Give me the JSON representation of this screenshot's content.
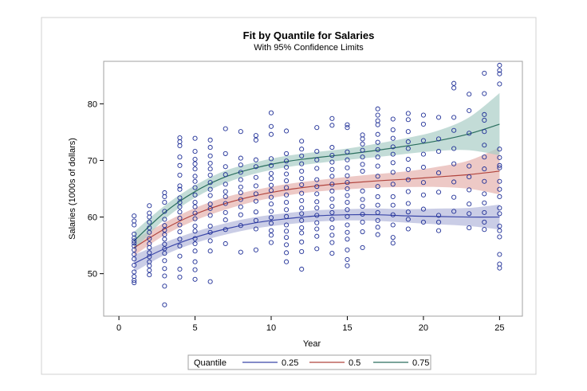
{
  "chart_data": {
    "type": "scatter",
    "title": "Fit by Quantile for Salaries",
    "subtitle": "With 95% Confidence Limits",
    "xlabel": "Year",
    "ylabel": "Salaries (1000s of dollars)",
    "xlim": [
      -1,
      26.5
    ],
    "ylim": [
      42.5,
      87.5
    ],
    "xticks": [
      0,
      5,
      10,
      15,
      20,
      25
    ],
    "yticks": [
      50,
      60,
      70,
      80
    ],
    "grid": false,
    "legend": {
      "title": "Quantile",
      "placement": "bottom"
    },
    "point_color": "#1f2f97",
    "series": [
      {
        "name": "0.25",
        "color": "#3a46a8",
        "band_color": "#b3b8dc",
        "x": [
          1,
          3,
          5,
          7,
          9,
          11,
          13,
          15,
          17,
          19,
          21,
          23,
          25
        ],
        "y": [
          51.8,
          54.4,
          56.4,
          57.9,
          59.0,
          59.7,
          60.2,
          60.4,
          60.4,
          60.2,
          60.1,
          60.0,
          60.0
        ],
        "lower": [
          50.3,
          53.3,
          55.4,
          56.9,
          58.0,
          58.7,
          59.2,
          59.4,
          59.3,
          59.0,
          58.7,
          58.4,
          57.8
        ],
        "upper": [
          53.3,
          55.5,
          57.4,
          58.9,
          60.0,
          60.7,
          61.2,
          61.4,
          61.5,
          61.4,
          61.5,
          61.6,
          62.2
        ]
      },
      {
        "name": "0.5",
        "color": "#b1453e",
        "band_color": "#e6b2ae",
        "x": [
          1,
          3,
          5,
          7,
          9,
          11,
          13,
          15,
          17,
          19,
          21,
          23,
          25
        ],
        "y": [
          54.6,
          57.9,
          60.5,
          62.4,
          63.8,
          64.8,
          65.5,
          66.0,
          66.4,
          66.7,
          67.1,
          67.5,
          68.1
        ],
        "lower": [
          53.2,
          56.8,
          59.4,
          61.3,
          62.8,
          63.8,
          64.5,
          64.9,
          65.2,
          65.3,
          65.3,
          65.0,
          64.0
        ],
        "upper": [
          56.0,
          59.0,
          61.6,
          63.5,
          64.8,
          65.8,
          66.5,
          67.1,
          67.6,
          68.1,
          68.9,
          70.0,
          72.3
        ]
      },
      {
        "name": "0.75",
        "color": "#2a6e5e",
        "band_color": "#a9cdc6",
        "x": [
          1,
          3,
          5,
          7,
          9,
          11,
          13,
          15,
          17,
          19,
          21,
          23,
          25
        ],
        "y": [
          55.8,
          60.8,
          64.5,
          67.1,
          68.7,
          69.8,
          70.5,
          71.1,
          71.8,
          72.6,
          73.5,
          74.7,
          76.4
        ],
        "lower": [
          54.2,
          59.6,
          63.4,
          66.0,
          67.7,
          68.8,
          69.5,
          70.1,
          70.6,
          71.2,
          71.7,
          71.8,
          70.9
        ],
        "upper": [
          57.4,
          62.0,
          65.6,
          68.2,
          69.7,
          70.8,
          71.5,
          72.1,
          73.0,
          74.0,
          75.3,
          77.6,
          81.9
        ]
      }
    ],
    "points": [
      [
        1,
        48.4
      ],
      [
        1,
        48.8
      ],
      [
        1,
        49.5
      ],
      [
        1,
        50.3
      ],
      [
        1,
        51.5
      ],
      [
        1,
        52.6
      ],
      [
        1,
        53.4
      ],
      [
        1,
        54.2
      ],
      [
        1,
        54.9
      ],
      [
        1,
        55.4
      ],
      [
        1,
        55.8
      ],
      [
        1,
        56.3
      ],
      [
        1,
        57.0
      ],
      [
        1,
        58.6
      ],
      [
        1,
        59.3
      ],
      [
        1,
        60.2
      ],
      [
        2,
        49.8
      ],
      [
        2,
        50.6
      ],
      [
        2,
        51.4
      ],
      [
        2,
        52.1
      ],
      [
        2,
        53.0
      ],
      [
        2,
        53.7
      ],
      [
        2,
        54.6
      ],
      [
        2,
        55.3
      ],
      [
        2,
        56.2
      ],
      [
        2,
        57.3
      ],
      [
        2,
        58.1
      ],
      [
        2,
        59.1
      ],
      [
        2,
        60.0
      ],
      [
        2,
        60.7
      ],
      [
        2,
        62.0
      ],
      [
        3,
        44.5
      ],
      [
        3,
        47.8
      ],
      [
        3,
        49.6
      ],
      [
        3,
        50.9
      ],
      [
        3,
        52.3
      ],
      [
        3,
        53.6
      ],
      [
        3,
        54.4
      ],
      [
        3,
        55.2
      ],
      [
        3,
        56.1
      ],
      [
        3,
        56.9
      ],
      [
        3,
        57.7
      ],
      [
        3,
        58.5
      ],
      [
        3,
        59.6
      ],
      [
        3,
        61.0
      ],
      [
        3,
        62.6
      ],
      [
        3,
        63.6
      ],
      [
        3,
        64.3
      ],
      [
        4,
        49.4
      ],
      [
        4,
        50.8
      ],
      [
        4,
        53.1
      ],
      [
        4,
        54.9
      ],
      [
        4,
        56.1
      ],
      [
        4,
        57.4
      ],
      [
        4,
        58.6
      ],
      [
        4,
        59.8
      ],
      [
        4,
        60.9
      ],
      [
        4,
        61.8
      ],
      [
        4,
        62.6
      ],
      [
        4,
        63.4
      ],
      [
        4,
        64.9
      ],
      [
        4,
        65.5
      ],
      [
        4,
        67.4
      ],
      [
        4,
        69.1
      ],
      [
        4,
        70.6
      ],
      [
        4,
        72.6
      ],
      [
        4,
        73.3
      ],
      [
        4,
        74.0
      ],
      [
        5,
        49.0
      ],
      [
        5,
        50.7
      ],
      [
        5,
        52.1
      ],
      [
        5,
        54.0
      ],
      [
        5,
        55.3
      ],
      [
        5,
        56.2
      ],
      [
        5,
        57.5
      ],
      [
        5,
        58.4
      ],
      [
        5,
        59.7
      ],
      [
        5,
        60.7
      ],
      [
        5,
        61.8
      ],
      [
        5,
        62.6
      ],
      [
        5,
        63.9
      ],
      [
        5,
        65.2
      ],
      [
        5,
        66.3
      ],
      [
        5,
        67.2
      ],
      [
        5,
        68.5
      ],
      [
        5,
        69.4
      ],
      [
        5,
        70.2
      ],
      [
        5,
        71.6
      ],
      [
        5,
        73.9
      ],
      [
        6,
        48.6
      ],
      [
        6,
        54.0
      ],
      [
        6,
        55.8
      ],
      [
        6,
        57.3
      ],
      [
        6,
        58.4
      ],
      [
        6,
        60.3
      ],
      [
        6,
        61.5
      ],
      [
        6,
        62.3
      ],
      [
        6,
        63.8
      ],
      [
        6,
        64.9
      ],
      [
        6,
        66.1
      ],
      [
        6,
        67.4
      ],
      [
        6,
        68.5
      ],
      [
        6,
        69.5
      ],
      [
        6,
        70.8
      ],
      [
        6,
        72.3
      ],
      [
        6,
        73.6
      ],
      [
        7,
        55.3
      ],
      [
        7,
        57.8
      ],
      [
        7,
        59.5
      ],
      [
        7,
        60.8
      ],
      [
        7,
        62.4
      ],
      [
        7,
        63.6
      ],
      [
        7,
        64.5
      ],
      [
        7,
        65.8
      ],
      [
        7,
        67.5
      ],
      [
        7,
        68.9
      ],
      [
        7,
        71.2
      ],
      [
        7,
        75.6
      ],
      [
        8,
        53.8
      ],
      [
        8,
        58.5
      ],
      [
        8,
        60.4
      ],
      [
        8,
        61.8
      ],
      [
        8,
        63.1
      ],
      [
        8,
        64.3
      ],
      [
        8,
        65.3
      ],
      [
        8,
        66.6
      ],
      [
        8,
        67.9
      ],
      [
        8,
        69.2
      ],
      [
        8,
        70.4
      ],
      [
        8,
        75.1
      ],
      [
        9,
        54.2
      ],
      [
        9,
        57.9
      ],
      [
        9,
        59.4
      ],
      [
        9,
        60.9
      ],
      [
        9,
        62.8
      ],
      [
        9,
        64.1
      ],
      [
        9,
        65.5
      ],
      [
        9,
        67.0
      ],
      [
        9,
        68.9
      ],
      [
        9,
        70.1
      ],
      [
        9,
        73.6
      ],
      [
        9,
        74.4
      ],
      [
        10,
        55.5
      ],
      [
        10,
        56.8
      ],
      [
        10,
        57.6
      ],
      [
        10,
        58.9
      ],
      [
        10,
        59.9
      ],
      [
        10,
        61.0
      ],
      [
        10,
        62.3
      ],
      [
        10,
        63.5
      ],
      [
        10,
        64.7
      ],
      [
        10,
        65.6
      ],
      [
        10,
        66.8
      ],
      [
        10,
        67.7
      ],
      [
        10,
        69.1
      ],
      [
        10,
        70.3
      ],
      [
        10,
        74.6
      ],
      [
        10,
        76.0
      ],
      [
        10,
        78.4
      ],
      [
        11,
        52.1
      ],
      [
        11,
        53.7
      ],
      [
        11,
        55.1
      ],
      [
        11,
        56.4
      ],
      [
        11,
        57.5
      ],
      [
        11,
        58.6
      ],
      [
        11,
        60.1
      ],
      [
        11,
        61.3
      ],
      [
        11,
        62.6
      ],
      [
        11,
        63.9
      ],
      [
        11,
        65.2
      ],
      [
        11,
        66.4
      ],
      [
        11,
        67.6
      ],
      [
        11,
        68.8
      ],
      [
        11,
        69.9
      ],
      [
        11,
        71.2
      ],
      [
        11,
        75.2
      ],
      [
        12,
        50.8
      ],
      [
        12,
        53.9
      ],
      [
        12,
        55.6
      ],
      [
        12,
        57.2
      ],
      [
        12,
        58.1
      ],
      [
        12,
        59.4
      ],
      [
        12,
        60.6
      ],
      [
        12,
        61.6
      ],
      [
        12,
        62.9
      ],
      [
        12,
        64.2
      ],
      [
        12,
        65.7
      ],
      [
        12,
        66.8
      ],
      [
        12,
        68.1
      ],
      [
        12,
        69.4
      ],
      [
        12,
        70.8
      ],
      [
        12,
        72.0
      ],
      [
        12,
        73.4
      ],
      [
        13,
        54.4
      ],
      [
        13,
        56.6
      ],
      [
        13,
        57.9
      ],
      [
        13,
        59.0
      ],
      [
        13,
        60.3
      ],
      [
        13,
        61.6
      ],
      [
        13,
        62.7
      ],
      [
        13,
        64.1
      ],
      [
        13,
        65.4
      ],
      [
        13,
        66.6
      ],
      [
        13,
        68.6
      ],
      [
        13,
        70.1
      ],
      [
        13,
        71.6
      ],
      [
        13,
        75.8
      ],
      [
        14,
        53.6
      ],
      [
        14,
        55.5
      ],
      [
        14,
        56.8
      ],
      [
        14,
        58.1
      ],
      [
        14,
        59.6
      ],
      [
        14,
        60.8
      ],
      [
        14,
        61.9
      ],
      [
        14,
        63.2
      ],
      [
        14,
        64.6
      ],
      [
        14,
        65.8
      ],
      [
        14,
        67.2
      ],
      [
        14,
        68.4
      ],
      [
        14,
        69.7
      ],
      [
        14,
        70.9
      ],
      [
        14,
        72.3
      ],
      [
        14,
        76.2
      ],
      [
        14,
        77.4
      ],
      [
        15,
        51.4
      ],
      [
        15,
        52.5
      ],
      [
        15,
        54.2
      ],
      [
        15,
        56.1
      ],
      [
        15,
        57.3
      ],
      [
        15,
        58.6
      ],
      [
        15,
        60.1
      ],
      [
        15,
        61.3
      ],
      [
        15,
        62.6
      ],
      [
        15,
        63.8
      ],
      [
        15,
        65.0
      ],
      [
        15,
        66.1
      ],
      [
        15,
        67.3
      ],
      [
        15,
        68.7
      ],
      [
        15,
        70.1
      ],
      [
        15,
        71.5
      ],
      [
        15,
        75.8
      ],
      [
        15,
        76.3
      ],
      [
        16,
        54.6
      ],
      [
        16,
        57.4
      ],
      [
        16,
        59.1
      ],
      [
        16,
        60.5
      ],
      [
        16,
        61.9
      ],
      [
        16,
        63.1
      ],
      [
        16,
        64.6
      ],
      [
        16,
        68.1
      ],
      [
        16,
        69.3
      ],
      [
        16,
        70.6
      ],
      [
        16,
        71.8
      ],
      [
        16,
        72.9
      ],
      [
        16,
        73.8
      ],
      [
        16,
        74.5
      ],
      [
        17,
        56.9
      ],
      [
        17,
        58.2
      ],
      [
        17,
        59.4
      ],
      [
        17,
        60.8
      ],
      [
        17,
        62.1
      ],
      [
        17,
        63.6
      ],
      [
        17,
        65.4
      ],
      [
        17,
        67.2
      ],
      [
        17,
        69.0
      ],
      [
        17,
        70.6
      ],
      [
        17,
        71.9
      ],
      [
        17,
        73.2
      ],
      [
        17,
        74.6
      ],
      [
        17,
        76.3
      ],
      [
        17,
        77.0
      ],
      [
        17,
        78.0
      ],
      [
        17,
        79.1
      ],
      [
        18,
        55.4
      ],
      [
        18,
        56.4
      ],
      [
        18,
        58.6
      ],
      [
        18,
        60.4
      ],
      [
        18,
        62.1
      ],
      [
        18,
        63.6
      ],
      [
        18,
        65.8
      ],
      [
        18,
        67.9
      ],
      [
        18,
        69.6
      ],
      [
        18,
        71.1
      ],
      [
        18,
        72.4
      ],
      [
        18,
        73.9
      ],
      [
        18,
        75.4
      ],
      [
        18,
        77.3
      ],
      [
        19,
        57.9
      ],
      [
        19,
        59.6
      ],
      [
        19,
        60.9
      ],
      [
        19,
        62.4
      ],
      [
        19,
        64.5
      ],
      [
        19,
        66.6
      ],
      [
        19,
        68.4
      ],
      [
        19,
        70.2
      ],
      [
        19,
        72.1
      ],
      [
        19,
        73.3
      ],
      [
        19,
        75.1
      ],
      [
        19,
        77.2
      ],
      [
        19,
        78.3
      ],
      [
        20,
        59.1
      ],
      [
        20,
        61.4
      ],
      [
        20,
        63.9
      ],
      [
        20,
        66.1
      ],
      [
        20,
        68.8
      ],
      [
        20,
        71.1
      ],
      [
        20,
        73.5
      ],
      [
        20,
        76.4
      ],
      [
        20,
        78.0
      ],
      [
        21,
        57.6
      ],
      [
        21,
        59.1
      ],
      [
        21,
        60.3
      ],
      [
        21,
        64.4
      ],
      [
        21,
        67.8
      ],
      [
        21,
        71.6
      ],
      [
        21,
        73.8
      ],
      [
        21,
        77.6
      ],
      [
        22,
        61.0
      ],
      [
        22,
        63.5
      ],
      [
        22,
        66.2
      ],
      [
        22,
        69.4
      ],
      [
        22,
        72.1
      ],
      [
        22,
        75.3
      ],
      [
        22,
        77.6
      ],
      [
        22,
        82.8
      ],
      [
        22,
        83.6
      ],
      [
        23,
        58.1
      ],
      [
        23,
        60.6
      ],
      [
        23,
        62.3
      ],
      [
        23,
        64.8
      ],
      [
        23,
        67.1
      ],
      [
        23,
        69.0
      ],
      [
        23,
        74.8
      ],
      [
        23,
        78.8
      ],
      [
        23,
        81.7
      ],
      [
        24,
        57.8
      ],
      [
        24,
        59.1
      ],
      [
        24,
        60.8
      ],
      [
        24,
        62.5
      ],
      [
        24,
        64.1
      ],
      [
        24,
        66.3
      ],
      [
        24,
        68.5
      ],
      [
        24,
        70.6
      ],
      [
        24,
        72.7
      ],
      [
        24,
        75.1
      ],
      [
        24,
        77.1
      ],
      [
        24,
        78.1
      ],
      [
        24,
        81.8
      ],
      [
        24,
        85.4
      ],
      [
        25,
        51.0
      ],
      [
        25,
        51.7
      ],
      [
        25,
        53.4
      ],
      [
        25,
        56.5
      ],
      [
        25,
        57.6
      ],
      [
        25,
        58.4
      ],
      [
        25,
        60.6
      ],
      [
        25,
        61.6
      ],
      [
        25,
        63.6
      ],
      [
        25,
        64.9
      ],
      [
        25,
        66.3
      ],
      [
        25,
        68.7
      ],
      [
        25,
        69.1
      ],
      [
        25,
        70.5
      ],
      [
        25,
        72.0
      ],
      [
        25,
        83.5
      ],
      [
        25,
        85.3
      ],
      [
        25,
        85.9
      ],
      [
        25,
        86.8
      ]
    ]
  }
}
